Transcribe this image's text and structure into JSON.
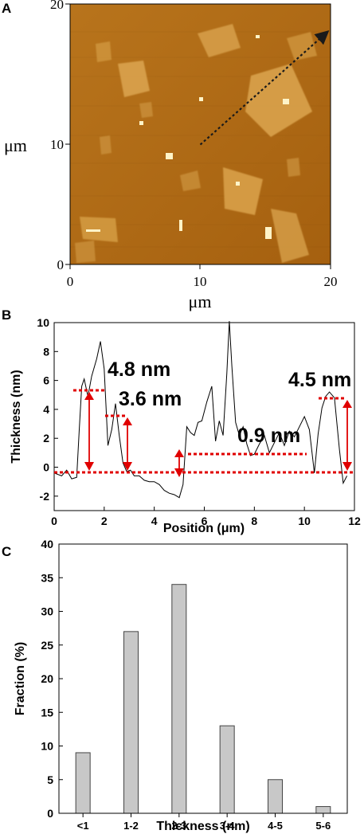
{
  "panels": {
    "a_label": "A",
    "b_label": "B",
    "c_label": "C"
  },
  "colors": {
    "afm_background": "#b06a14",
    "afm_flake": "#d9a04a",
    "afm_bright": "#fff6d0",
    "profile_line": "#000000",
    "annotation": "#e00000",
    "bar_fill": "#c8c8c8",
    "bar_stroke": "#444444"
  },
  "chart_data": [
    {
      "type": "heatmap",
      "description_kind": "afm-image",
      "xlabel": "μm",
      "ylabel": "μm",
      "xlim": [
        0,
        20
      ],
      "ylim": [
        0,
        20
      ],
      "x_ticks": [
        "0",
        "10",
        "20"
      ],
      "y_ticks": [
        "0",
        "10",
        "20"
      ],
      "line_scan": {
        "from": [
          10,
          9.2
        ],
        "to": [
          19.7,
          17.8
        ]
      }
    },
    {
      "type": "line",
      "xlabel": "Position (μm)",
      "ylabel": "Thickness (nm)",
      "xlim": [
        0,
        12
      ],
      "ylim": [
        -3,
        10
      ],
      "x_ticks": [
        "0",
        "2",
        "4",
        "6",
        "8",
        "10",
        "12"
      ],
      "y_ticks": [
        "-2",
        "0",
        "2",
        "4",
        "6",
        "8",
        "10"
      ],
      "x": [
        0.0,
        0.3,
        0.5,
        0.7,
        0.9,
        1.0,
        1.1,
        1.2,
        1.35,
        1.5,
        1.7,
        1.85,
        2.0,
        2.15,
        2.3,
        2.45,
        2.6,
        2.75,
        2.9,
        3.05,
        3.2,
        3.4,
        3.6,
        3.8,
        4.0,
        4.2,
        4.4,
        4.6,
        4.8,
        5.0,
        5.15,
        5.3,
        5.45,
        5.6,
        5.75,
        5.9,
        6.1,
        6.3,
        6.45,
        6.6,
        6.75,
        6.9,
        7.0,
        7.1,
        7.25,
        7.4,
        7.55,
        7.7,
        7.85,
        8.0,
        8.2,
        8.4,
        8.6,
        8.8,
        9.0,
        9.2,
        9.4,
        9.6,
        9.8,
        10.0,
        10.2,
        10.4,
        10.55,
        10.7,
        10.85,
        11.0,
        11.2,
        11.4,
        11.55,
        11.7
      ],
      "y": [
        -0.4,
        -0.6,
        -0.2,
        -0.8,
        -0.7,
        2.5,
        5.6,
        6.1,
        4.9,
        6.3,
        7.5,
        8.7,
        6.8,
        1.5,
        2.6,
        4.4,
        2.2,
        0.3,
        -0.3,
        -0.2,
        -0.6,
        -0.6,
        -0.9,
        -1.0,
        -1.0,
        -1.2,
        -1.6,
        -1.8,
        -1.9,
        -2.1,
        -1.2,
        2.8,
        2.4,
        2.2,
        3.1,
        3.2,
        4.5,
        5.6,
        1.8,
        3.2,
        2.2,
        6.5,
        10.1,
        7.0,
        3.1,
        2.2,
        2.8,
        1.6,
        0.8,
        0.9,
        1.6,
        2.2,
        1.0,
        1.7,
        2.4,
        1.5,
        2.5,
        2.1,
        2.8,
        3.5,
        2.6,
        -0.4,
        2.3,
        4.1,
        4.9,
        5.2,
        4.8,
        1.2,
        -1.1,
        -0.6
      ],
      "annotations": [
        "4.8 nm",
        "3.6 nm",
        "0.9 nm",
        "4.5 nm"
      ]
    },
    {
      "type": "bar",
      "categories": [
        "<1",
        "1-2",
        "2-3",
        "3-4",
        "4-5",
        "5-6"
      ],
      "values": [
        9,
        27,
        34,
        13,
        5,
        1
      ],
      "xlabel": "Thickness (nm)",
      "ylabel": "Fraction (%)",
      "ylim": [
        0,
        40
      ],
      "y_ticks": [
        "0",
        "5",
        "10",
        "15",
        "20",
        "25",
        "30",
        "35",
        "40"
      ]
    }
  ]
}
